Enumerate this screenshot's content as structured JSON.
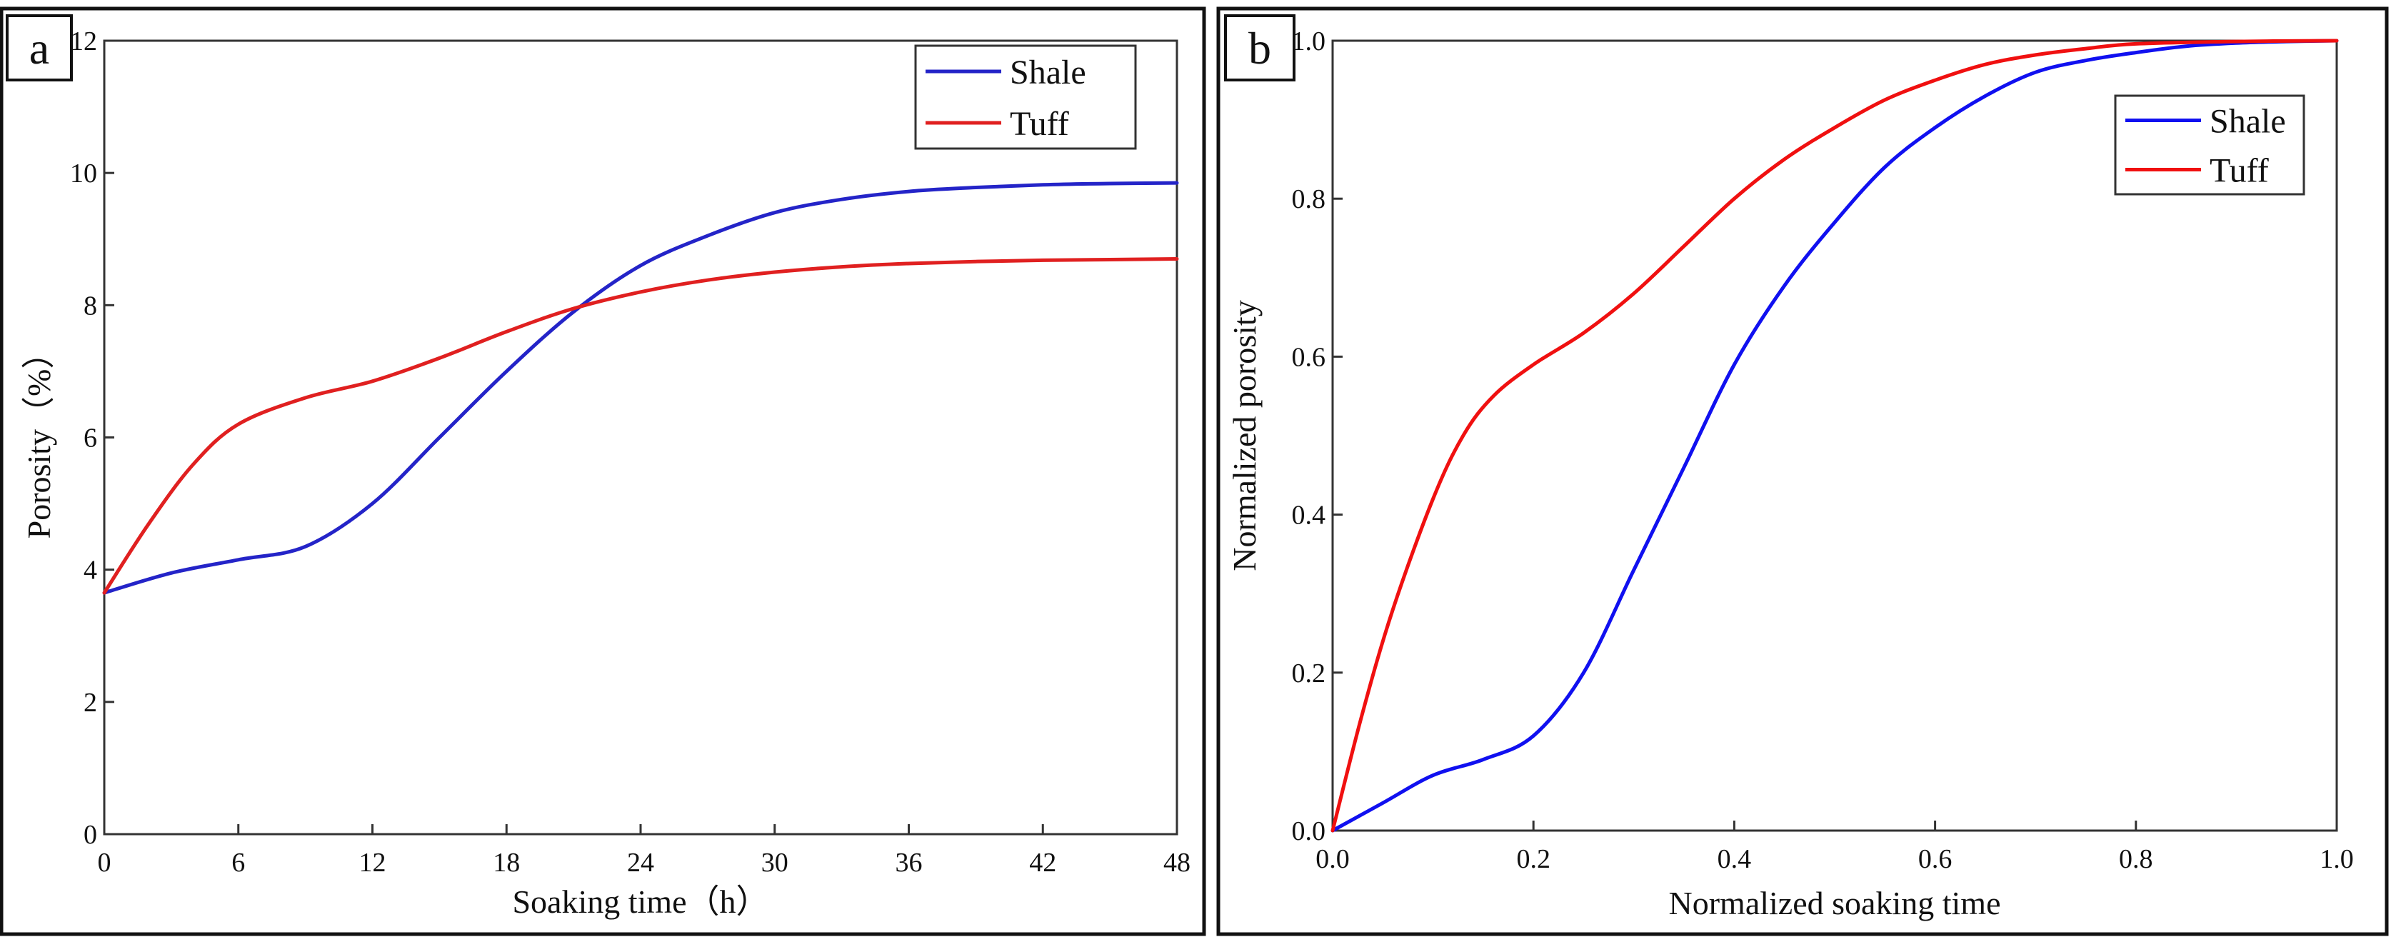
{
  "chart_data": [
    {
      "type": "line",
      "panel_label": "a",
      "title": "",
      "xlabel": "Soaking time（h）",
      "ylabel": "Porosity（%）",
      "xlim": [
        0,
        48
      ],
      "ylim": [
        0,
        12
      ],
      "xticks": [
        "0",
        "6",
        "12",
        "18",
        "24",
        "30",
        "36",
        "42",
        "48"
      ],
      "yticks": [
        "0",
        "2",
        "4",
        "6",
        "8",
        "10",
        "12"
      ],
      "legend_position": "top-right",
      "series": [
        {
          "name": "Shale",
          "color": "#2424c8",
          "x": [
            0,
            3,
            6,
            9,
            12,
            15,
            18,
            21,
            24,
            27,
            30,
            33,
            36,
            39,
            42,
            45,
            48
          ],
          "y": [
            3.65,
            3.95,
            4.15,
            4.35,
            5.0,
            6.0,
            7.0,
            7.9,
            8.6,
            9.05,
            9.4,
            9.6,
            9.72,
            9.78,
            9.82,
            9.84,
            9.85
          ]
        },
        {
          "name": "Tuff",
          "color": "#e02020",
          "x": [
            0,
            2,
            4,
            6,
            9,
            12,
            15,
            18,
            21,
            24,
            27,
            30,
            33,
            36,
            39,
            42,
            45,
            48
          ],
          "y": [
            3.65,
            4.7,
            5.6,
            6.2,
            6.6,
            6.85,
            7.2,
            7.6,
            7.95,
            8.2,
            8.38,
            8.5,
            8.58,
            8.63,
            8.66,
            8.68,
            8.69,
            8.7
          ]
        }
      ]
    },
    {
      "type": "line",
      "panel_label": "b",
      "title": "",
      "xlabel": "Normalized soaking time",
      "ylabel": "Normalized porosity",
      "xlim": [
        0,
        1
      ],
      "ylim": [
        0,
        1
      ],
      "xticks": [
        "0.0",
        "0.2",
        "0.4",
        "0.6",
        "0.8",
        "1.0"
      ],
      "yticks": [
        "0.0",
        "0.2",
        "0.4",
        "0.6",
        "0.8",
        "1.0"
      ],
      "legend_position": "top-right",
      "series": [
        {
          "name": "Shale",
          "color": "#1010f0",
          "x": [
            0,
            0.05,
            0.1,
            0.15,
            0.2,
            0.25,
            0.3,
            0.35,
            0.4,
            0.45,
            0.5,
            0.55,
            0.6,
            0.65,
            0.7,
            0.75,
            0.8,
            0.85,
            0.9,
            0.95,
            1.0
          ],
          "y": [
            0,
            0.035,
            0.07,
            0.09,
            0.12,
            0.2,
            0.33,
            0.46,
            0.59,
            0.69,
            0.77,
            0.84,
            0.89,
            0.93,
            0.96,
            0.975,
            0.985,
            0.993,
            0.997,
            0.999,
            1.0
          ]
        },
        {
          "name": "Tuff",
          "color": "#f01010",
          "x": [
            0,
            0.03,
            0.06,
            0.1,
            0.13,
            0.16,
            0.2,
            0.25,
            0.3,
            0.35,
            0.4,
            0.45,
            0.5,
            0.55,
            0.6,
            0.65,
            0.7,
            0.75,
            0.8,
            0.9,
            1.0
          ],
          "y": [
            0,
            0.15,
            0.28,
            0.42,
            0.5,
            0.55,
            0.59,
            0.63,
            0.68,
            0.74,
            0.8,
            0.85,
            0.89,
            0.925,
            0.95,
            0.97,
            0.982,
            0.99,
            0.996,
            0.999,
            1.0
          ]
        }
      ]
    }
  ]
}
